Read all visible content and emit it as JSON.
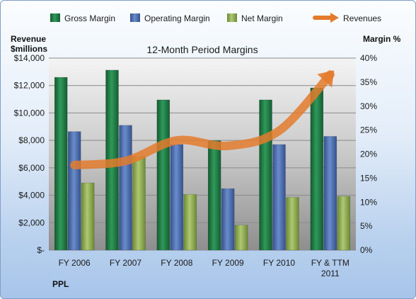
{
  "chart_data": {
    "type": "bar",
    "title": "12-Month Period Margins",
    "left_axis_title_line1": "Revenue",
    "left_axis_title_line2": "$millions",
    "right_axis_title": "Margin %",
    "company": "PPL",
    "categories": [
      [
        "FY 2006"
      ],
      [
        "FY 2007"
      ],
      [
        "FY 2008"
      ],
      [
        "FY 2009"
      ],
      [
        "FY 2010"
      ],
      [
        "FY & TTM",
        "2011"
      ]
    ],
    "series": [
      {
        "name": "Gross Margin",
        "axis": "right",
        "values": [
          36,
          37.5,
          31.3,
          22.8,
          31.3,
          33.8
        ],
        "color": "#1f7a45"
      },
      {
        "name": "Operating Margin",
        "axis": "right",
        "values": [
          24.7,
          26,
          22,
          12.8,
          22,
          23.7
        ],
        "color": "#4a6db0"
      },
      {
        "name": "Net Margin",
        "axis": "right",
        "values": [
          14,
          19.5,
          11.6,
          5.2,
          11,
          11.2
        ],
        "color": "#8faf4c"
      },
      {
        "name": "Revenues",
        "axis": "left",
        "type": "line",
        "values": [
          6200,
          6500,
          8000,
          7600,
          8700,
          12800
        ],
        "color": "#e37b2d"
      }
    ],
    "left_axis": {
      "ylim": [
        0,
        14000
      ],
      "ticks": [
        "$-",
        "$2,000",
        "$4,000",
        "$6,000",
        "$8,000",
        "$10,000",
        "$12,000",
        "$14,000"
      ]
    },
    "right_axis": {
      "ylim": [
        0,
        40
      ],
      "ticks": [
        "0%",
        "5%",
        "10%",
        "15%",
        "20%",
        "25%",
        "30%",
        "35%",
        "40%"
      ]
    },
    "grid": true,
    "legend_placement": "top"
  }
}
